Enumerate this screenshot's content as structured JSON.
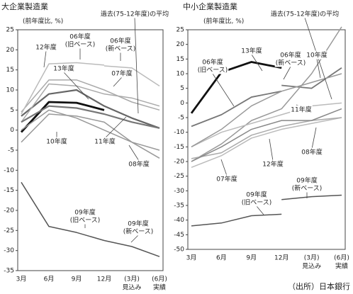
{
  "chart_data": [
    {
      "type": "line",
      "title": "大企業製造業",
      "y_label": "(前年度比, %)",
      "categories": [
        "3月",
        "6月",
        "9月",
        "12月",
        "(3月)",
        "(6月)"
      ],
      "category_notes": [
        null,
        null,
        null,
        null,
        "見込み",
        "実績"
      ],
      "ylim": [
        -35,
        25
      ],
      "yticks": [
        25,
        20,
        15,
        10,
        5,
        0,
        -5,
        -10,
        -15,
        -20,
        -25,
        -30,
        -35
      ],
      "series": [
        {
          "label": [
            "10年度"
          ],
          "color": "#111111",
          "line_width": 2.8,
          "values": [
            -0.5,
            7,
            6.8,
            5,
            null,
            null
          ]
        },
        {
          "label": [
            "12年度"
          ],
          "color": "#aaaaaa",
          "line_width": 1.5,
          "values": [
            4.5,
            12.5,
            12.5,
            10,
            7,
            5
          ]
        },
        {
          "label": [
            "06年度",
            "(旧ベース)"
          ],
          "color": "#bbbbbb",
          "line_width": 1.5,
          "values": [
            4,
            16.5,
            16.8,
            16.2,
            null,
            null
          ]
        },
        {
          "label": [
            "06年度",
            "(新ベース)"
          ],
          "color": "#bbbbbb",
          "line_width": 1.5,
          "values": [
            null,
            null,
            null,
            16,
            15.5,
            11
          ]
        },
        {
          "label": [
            "13年度"
          ],
          "color": "#666666",
          "line_width": 2.2,
          "values": [
            3.5,
            9,
            10,
            6,
            3,
            0.5
          ]
        },
        {
          "label": [
            "07年度"
          ],
          "color": "#aaaaaa",
          "line_width": 1.5,
          "values": [
            2,
            11.5,
            11,
            9,
            8,
            6
          ]
        },
        {
          "label": [
            "過去(75-12年度)の平均"
          ],
          "color": "#777777",
          "line_width": 2.2,
          "values": [
            2,
            6,
            5.5,
            4,
            2,
            0.5
          ]
        },
        {
          "label": [
            "11年度"
          ],
          "color": "#999999",
          "line_width": 1.5,
          "values": [
            -3,
            4,
            3.5,
            2,
            -3,
            -7
          ]
        },
        {
          "label": [
            "08年度"
          ],
          "color": "#999999",
          "line_width": 1.5,
          "values": [
            0,
            5,
            3,
            0,
            -3,
            -5
          ]
        },
        {
          "label": [
            "09年度",
            "(旧ベース)"
          ],
          "color": "#555555",
          "line_width": 1.5,
          "values": [
            -13,
            -24,
            -25.5,
            -27.5,
            null,
            null
          ]
        },
        {
          "label": [
            "09年度",
            "(新ベース)"
          ],
          "color": "#555555",
          "line_width": 1.5,
          "values": [
            null,
            null,
            null,
            -27.5,
            -29,
            -31.5
          ]
        }
      ]
    },
    {
      "type": "line",
      "title": "中小企業製造業",
      "y_label": "(前年度比, %)",
      "categories": [
        "3月",
        "6月",
        "9月",
        "12月",
        "(3月)",
        "(6月)"
      ],
      "category_notes": [
        null,
        null,
        null,
        null,
        "見込み",
        "実績"
      ],
      "ylim": [
        -50,
        25
      ],
      "yticks": [
        25,
        20,
        15,
        10,
        5,
        0,
        -5,
        -10,
        -15,
        -20,
        -25,
        -30,
        -35,
        -40,
        -45,
        -50
      ],
      "series": [
        {
          "label": [
            "13年度"
          ],
          "color": "#111111",
          "line_width": 2.8,
          "values": [
            -3.5,
            10.5,
            14,
            12,
            null,
            null
          ]
        },
        {
          "label": [
            "06年度",
            "(旧ベース)"
          ],
          "color": "#777777",
          "line_width": 1.8,
          "values": [
            -8,
            -4,
            2,
            4,
            null,
            null
          ]
        },
        {
          "label": [
            "06年度",
            "(新ベース)"
          ],
          "color": "#777777",
          "line_width": 1.8,
          "values": [
            null,
            null,
            null,
            6,
            5,
            12
          ]
        },
        {
          "label": [
            "過去(75-12年度)の平均"
          ],
          "color": "#bbbbbb",
          "line_width": 1.5,
          "values": [
            -22,
            -18,
            -12,
            -9,
            -7,
            -5
          ]
        },
        {
          "label": [
            "10年度"
          ],
          "color": "#999999",
          "line_width": 1.5,
          "values": [
            -20,
            -14,
            -6,
            -2,
            10,
            26
          ]
        },
        {
          "label": [
            "11年度"
          ],
          "color": "#bbbbbb",
          "line_width": 1.5,
          "values": [
            -15,
            -10,
            -7,
            -4,
            -1,
            0
          ]
        },
        {
          "label": [
            "07年度"
          ],
          "color": "#999999",
          "line_width": 1.5,
          "values": [
            -15,
            -9,
            -1,
            4,
            7,
            10
          ]
        },
        {
          "label": [
            "12年度"
          ],
          "color": "#aaaaaa",
          "line_width": 1.5,
          "values": [
            -19,
            -17,
            -11,
            -8,
            -6,
            -5
          ]
        },
        {
          "label": [
            "08年度"
          ],
          "color": "#888888",
          "line_width": 1.5,
          "values": [
            -20,
            -15,
            -9,
            -6,
            -6,
            -2
          ]
        },
        {
          "label": [
            "09年度",
            "(旧ベース)"
          ],
          "color": "#555555",
          "line_width": 1.5,
          "values": [
            -42,
            -41,
            -38.5,
            -38,
            null,
            null
          ]
        },
        {
          "label": [
            "09年度",
            "(新ベース)"
          ],
          "color": "#555555",
          "line_width": 1.5,
          "values": [
            null,
            null,
            null,
            -33,
            -32,
            -31.5
          ]
        }
      ]
    }
  ],
  "source": "（出所）日本銀行"
}
